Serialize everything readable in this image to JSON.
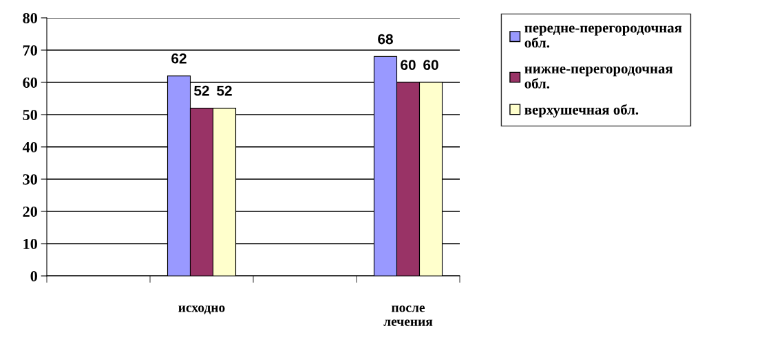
{
  "chart_data": {
    "type": "bar",
    "categories": [
      null,
      "исходно",
      null,
      "после лечения"
    ],
    "series": [
      {
        "name": "передне-перегородочная обл.",
        "color": "#9999ff",
        "values": [
          null,
          62,
          null,
          68
        ]
      },
      {
        "name": "нижне-перегородочная обл.",
        "color": "#993366",
        "values": [
          null,
          52,
          null,
          60
        ]
      },
      {
        "name": "верхушечная обл.",
        "color": "#ffffcc",
        "values": [
          null,
          52,
          null,
          60
        ]
      }
    ],
    "ylim": [
      0,
      80
    ],
    "yticks": [
      0,
      10,
      20,
      30,
      40,
      50,
      60,
      70,
      80
    ],
    "grid": "y",
    "legend": "right",
    "data_labels": true
  }
}
